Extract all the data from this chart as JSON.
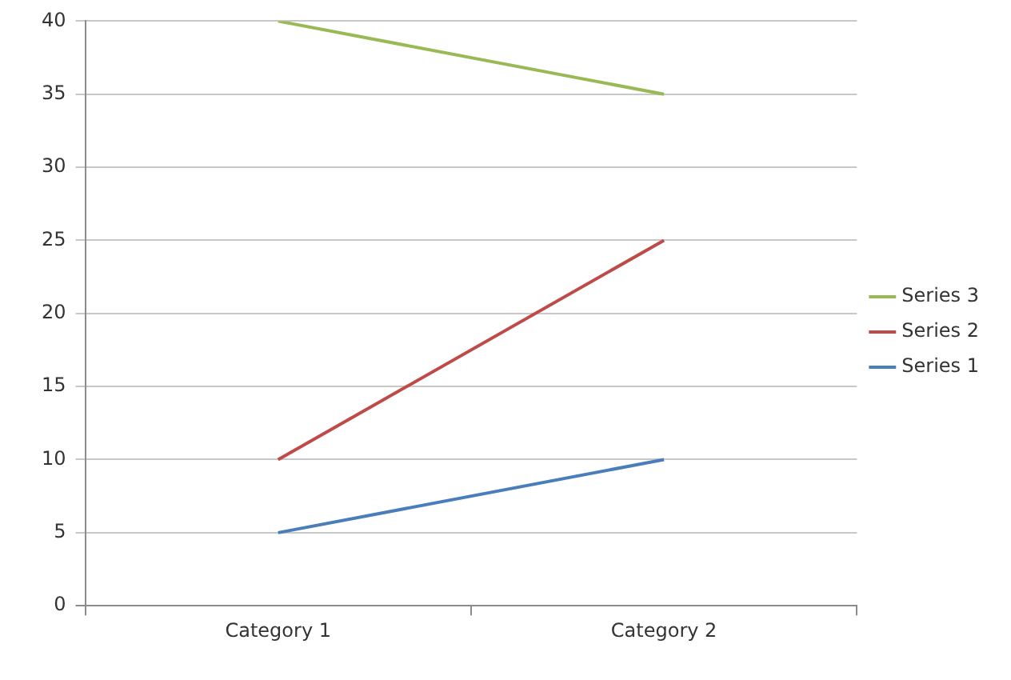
{
  "chart_data": {
    "type": "line",
    "categories": [
      "Category 1",
      "Category 2"
    ],
    "series": [
      {
        "name": "Series 1",
        "color": "#4a7ebb",
        "values": [
          5,
          10
        ]
      },
      {
        "name": "Series 2",
        "color": "#be4b48",
        "values": [
          10,
          25
        ]
      },
      {
        "name": "Series 3",
        "color": "#98b954",
        "values": [
          40,
          35
        ]
      }
    ],
    "ylim": [
      0,
      40
    ],
    "yticks": [
      0,
      5,
      10,
      15,
      20,
      25,
      30,
      35,
      40
    ],
    "grid": "y",
    "legend": "right",
    "marker": "none",
    "line_style": "solid"
  }
}
